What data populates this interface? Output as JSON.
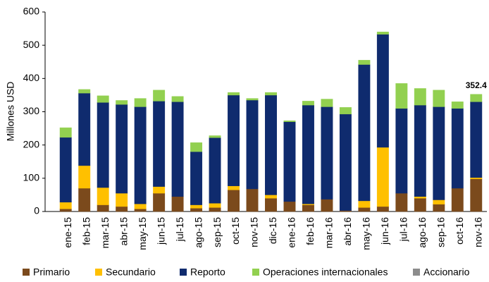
{
  "chart_data": {
    "type": "stacked_bar",
    "ylabel": "Millones USD",
    "categories": [
      "ene-15",
      "feb-15",
      "mar-15",
      "abr-15",
      "may-15",
      "jun-15",
      "jul-15",
      "ago-15",
      "sep-15",
      "oct-15",
      "nov-15",
      "dic-15",
      "ene-16",
      "feb-16",
      "mar-16",
      "abr-16",
      "may-16",
      "jun-16",
      "jul-16",
      "ago-16",
      "sep-16",
      "oct-16",
      "nov-16"
    ],
    "series": [
      {
        "name": "Primario",
        "color": "#7b4a1c",
        "values": [
          8,
          70,
          20,
          15,
          8,
          55,
          45,
          10,
          12,
          65,
          68,
          40,
          30,
          20,
          37,
          3,
          12,
          15,
          55,
          40,
          22,
          70,
          98
        ]
      },
      {
        "name": "Secundario",
        "color": "#ffc000",
        "values": [
          20,
          68,
          52,
          40,
          15,
          20,
          0,
          10,
          13,
          12,
          0,
          10,
          0,
          3,
          0,
          0,
          20,
          178,
          0,
          5,
          13,
          0,
          4
        ]
      },
      {
        "name": "Reporto",
        "color": "#0f2b6e",
        "values": [
          195,
          218,
          256,
          267,
          292,
          257,
          285,
          160,
          197,
          273,
          267,
          300,
          240,
          297,
          278,
          290,
          410,
          340,
          255,
          275,
          280,
          240,
          228
        ]
      },
      {
        "name": "Operaciones internacionales",
        "color": "#92d050",
        "values": [
          29,
          11,
          20,
          12,
          25,
          33,
          16,
          27,
          6,
          8,
          5,
          8,
          3,
          12,
          23,
          20,
          13,
          7,
          75,
          50,
          50,
          20,
          22.4
        ]
      },
      {
        "name": "Accionario",
        "color": "#8c8c8c",
        "values": [
          0,
          0,
          0,
          0,
          0,
          0,
          0,
          0,
          0,
          0,
          0,
          0,
          0,
          0,
          0,
          0,
          0,
          0,
          0,
          0,
          0,
          0,
          0
        ]
      }
    ],
    "annotations": [
      {
        "category_index": 22,
        "text": "352.4"
      }
    ],
    "ylim": [
      0,
      600
    ],
    "yticks": [
      0,
      100,
      200,
      300,
      400,
      500,
      600
    ],
    "grid": false,
    "legend": "bottom"
  }
}
